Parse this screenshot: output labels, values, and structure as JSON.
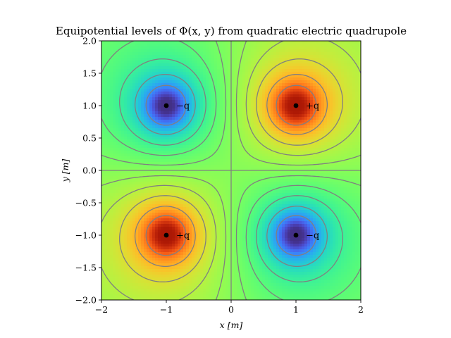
{
  "chart_data": {
    "type": "heatmap",
    "title": "Equipotential levels of Φ(x, y) from quadratic electric quadrupole",
    "xlabel": "x [m]",
    "ylabel": "y [m]",
    "xlim": [
      -2,
      2
    ],
    "ylim": [
      -2,
      2
    ],
    "xticks": [
      "−2",
      "−1",
      "0",
      "1",
      "2"
    ],
    "yticks": [
      "−2.0",
      "−1.5",
      "−1.0",
      "−0.5",
      "0.0",
      "0.5",
      "1.0",
      "1.5",
      "2.0"
    ],
    "xtick_values": [
      -2,
      -1,
      0,
      1,
      2
    ],
    "ytick_values": [
      -2.0,
      -1.5,
      -1.0,
      -0.5,
      0.0,
      0.5,
      1.0,
      1.5,
      2.0
    ],
    "colormap": "turbo",
    "contour_color": "#808080",
    "charges": [
      {
        "x": -1,
        "y": 1,
        "label": "−q",
        "sign": -1
      },
      {
        "x": 1,
        "y": 1,
        "label": "+q",
        "sign": 1
      },
      {
        "x": -1,
        "y": -1,
        "label": "+q",
        "sign": 1
      },
      {
        "x": 1,
        "y": -1,
        "label": "−q",
        "sign": -1
      }
    ],
    "grid": false,
    "legend": "none"
  }
}
